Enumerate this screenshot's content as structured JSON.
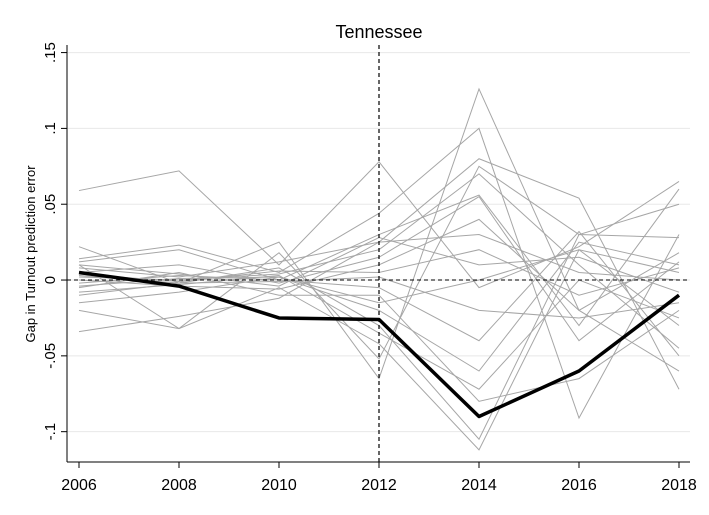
{
  "chart_data": {
    "type": "line",
    "title": "Tennessee",
    "xlabel": "",
    "ylabel": "Gap in Turnout prediction error",
    "x": [
      2006,
      2008,
      2010,
      2012,
      2014,
      2016,
      2018
    ],
    "x_tick_labels": [
      "2006",
      "2008",
      "2010",
      "2012",
      "2014",
      "2016",
      "2018"
    ],
    "y_ticks": [
      -0.1,
      -0.05,
      0,
      0.05,
      0.1,
      0.15
    ],
    "y_tick_labels": [
      "-.1",
      "-.05",
      "0",
      ".05",
      ".1",
      ".15"
    ],
    "ylim": [
      -0.12,
      0.155
    ],
    "xlim": [
      2006,
      2018
    ],
    "grid": true,
    "reference_lines": {
      "x": 2012,
      "y": 0
    },
    "colors": {
      "treated": "#000000",
      "placebo": "#a6a6a6",
      "grid": "#e8e8e8"
    },
    "treated_series": {
      "values": [
        0.005,
        -0.004,
        -0.025,
        -0.026,
        -0.09,
        -0.06,
        -0.01
      ]
    },
    "placebo_series": [
      {
        "values": [
          0.059,
          0.072,
          0.01,
          0.078,
          -0.005,
          0.022,
          0.065
        ]
      },
      {
        "values": [
          0.022,
          -0.002,
          0.025,
          -0.065,
          0.126,
          -0.02,
          -0.06
        ]
      },
      {
        "values": [
          0.014,
          0.023,
          0.005,
          0.044,
          0.1,
          -0.091,
          0.03
        ]
      },
      {
        "values": [
          -0.034,
          -0.024,
          -0.012,
          0.025,
          0.08,
          0.054,
          -0.072
        ]
      },
      {
        "values": [
          0.01,
          -0.032,
          0.018,
          -0.052,
          0.075,
          0.03,
          0.05
        ]
      },
      {
        "values": [
          0.012,
          0.02,
          0.0,
          0.03,
          0.056,
          -0.03,
          0.06
        ]
      },
      {
        "values": [
          -0.02,
          -0.032,
          -0.005,
          -0.042,
          -0.112,
          0.02,
          -0.03
        ]
      },
      {
        "values": [
          0.005,
          0.01,
          -0.002,
          0.015,
          0.055,
          -0.04,
          0.012
        ]
      },
      {
        "values": [
          -0.01,
          -0.002,
          0.008,
          -0.03,
          -0.105,
          0.03,
          0.028
        ]
      },
      {
        "values": [
          0.002,
          0.0,
          0.004,
          0.02,
          0.07,
          0.01,
          -0.045
        ]
      },
      {
        "values": [
          -0.005,
          0.005,
          -0.01,
          -0.01,
          -0.08,
          -0.065,
          -0.02
        ]
      },
      {
        "values": [
          0.008,
          0.002,
          0.012,
          0.025,
          0.03,
          0.005,
          0.0
        ]
      },
      {
        "values": [
          -0.015,
          -0.008,
          0.002,
          -0.02,
          -0.06,
          0.025,
          0.01
        ]
      },
      {
        "values": [
          0.0,
          -0.004,
          -0.006,
          0.01,
          0.04,
          -0.02,
          0.018
        ]
      },
      {
        "values": [
          -0.002,
          0.003,
          0.0,
          -0.005,
          -0.04,
          0.032,
          -0.05
        ]
      },
      {
        "values": [
          0.004,
          -0.001,
          0.006,
          0.005,
          0.02,
          -0.01,
          0.008
        ]
      },
      {
        "values": [
          -0.008,
          -0.003,
          0.003,
          -0.035,
          -0.072,
          0.0,
          -0.025
        ]
      },
      {
        "values": [
          0.01,
          0.004,
          -0.004,
          0.028,
          0.01,
          0.015,
          -0.008
        ]
      },
      {
        "values": [
          -0.004,
          0.001,
          0.002,
          -0.015,
          0.0,
          0.02,
          0.005
        ]
      },
      {
        "values": [
          0.003,
          -0.002,
          -0.001,
          0.002,
          -0.02,
          -0.025,
          -0.015
        ]
      }
    ]
  }
}
